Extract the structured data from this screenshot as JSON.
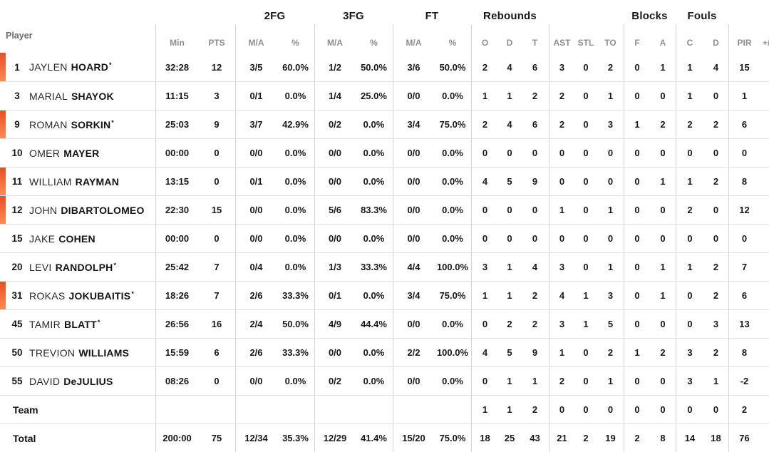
{
  "meta": {
    "starter_mark": "*"
  },
  "colors": {
    "on_court_accent_top": "#ef4c25",
    "on_court_accent_bottom": "#f68d57"
  },
  "header": {
    "player_label": "Player",
    "groups": {
      "fg2": "2FG",
      "fg3": "3FG",
      "ft": "FT",
      "rebounds": "Rebounds",
      "blocks": "Blocks",
      "fouls": "Fouls"
    },
    "cols": {
      "min": "Min",
      "pts": "PTS",
      "ma": "M/A",
      "pct": "%",
      "o": "O",
      "d": "D",
      "t": "T",
      "ast": "AST",
      "stl": "STL",
      "to": "TO",
      "f": "F",
      "a": "A",
      "c": "C",
      "pir": "PIR",
      "plusminus": "+/-"
    }
  },
  "table": {
    "rows": [
      {
        "type": "player",
        "number": "1",
        "first": "JAYLEN",
        "last": "HOARD",
        "starter": true,
        "on_court": true,
        "min": "32:28",
        "pts": "12",
        "fg2_ma": "3/5",
        "fg2_pct": "60.0%",
        "fg3_ma": "1/2",
        "fg3_pct": "50.0%",
        "ft_ma": "3/6",
        "ft_pct": "50.0%",
        "reb_o": "2",
        "reb_d": "4",
        "reb_t": "6",
        "ast": "3",
        "stl": "0",
        "to": "2",
        "blk_f": "0",
        "blk_a": "1",
        "foul_c": "1",
        "foul_d": "4",
        "pir": "15",
        "plusminus": ""
      },
      {
        "type": "player",
        "number": "3",
        "first": "MARIAL",
        "last": "SHAYOK",
        "starter": false,
        "on_court": false,
        "min": "11:15",
        "pts": "3",
        "fg2_ma": "0/1",
        "fg2_pct": "0.0%",
        "fg3_ma": "1/4",
        "fg3_pct": "25.0%",
        "ft_ma": "0/0",
        "ft_pct": "0.0%",
        "reb_o": "1",
        "reb_d": "1",
        "reb_t": "2",
        "ast": "2",
        "stl": "0",
        "to": "1",
        "blk_f": "0",
        "blk_a": "0",
        "foul_c": "1",
        "foul_d": "0",
        "pir": "1",
        "plusminus": ""
      },
      {
        "type": "player",
        "number": "9",
        "first": "ROMAN",
        "last": "SORKIN",
        "starter": true,
        "on_court": true,
        "min": "25:03",
        "pts": "9",
        "fg2_ma": "3/7",
        "fg2_pct": "42.9%",
        "fg3_ma": "0/2",
        "fg3_pct": "0.0%",
        "ft_ma": "3/4",
        "ft_pct": "75.0%",
        "reb_o": "2",
        "reb_d": "4",
        "reb_t": "6",
        "ast": "2",
        "stl": "0",
        "to": "3",
        "blk_f": "1",
        "blk_a": "2",
        "foul_c": "2",
        "foul_d": "2",
        "pir": "6",
        "plusminus": ""
      },
      {
        "type": "player",
        "number": "10",
        "first": "OMER",
        "last": "MAYER",
        "starter": false,
        "on_court": false,
        "min": "00:00",
        "pts": "0",
        "fg2_ma": "0/0",
        "fg2_pct": "0.0%",
        "fg3_ma": "0/0",
        "fg3_pct": "0.0%",
        "ft_ma": "0/0",
        "ft_pct": "0.0%",
        "reb_o": "0",
        "reb_d": "0",
        "reb_t": "0",
        "ast": "0",
        "stl": "0",
        "to": "0",
        "blk_f": "0",
        "blk_a": "0",
        "foul_c": "0",
        "foul_d": "0",
        "pir": "0",
        "plusminus": ""
      },
      {
        "type": "player",
        "number": "11",
        "first": "WILLIAM",
        "last": "RAYMAN",
        "starter": false,
        "on_court": true,
        "min": "13:15",
        "pts": "0",
        "fg2_ma": "0/1",
        "fg2_pct": "0.0%",
        "fg3_ma": "0/0",
        "fg3_pct": "0.0%",
        "ft_ma": "0/0",
        "ft_pct": "0.0%",
        "reb_o": "4",
        "reb_d": "5",
        "reb_t": "9",
        "ast": "0",
        "stl": "0",
        "to": "0",
        "blk_f": "0",
        "blk_a": "1",
        "foul_c": "1",
        "foul_d": "2",
        "pir": "8",
        "plusminus": ""
      },
      {
        "type": "player",
        "number": "12",
        "first": "JOHN",
        "last": "DIBARTOLOMEO",
        "starter": false,
        "on_court": true,
        "min": "22:30",
        "pts": "15",
        "fg2_ma": "0/0",
        "fg2_pct": "0.0%",
        "fg3_ma": "5/6",
        "fg3_pct": "83.3%",
        "ft_ma": "0/0",
        "ft_pct": "0.0%",
        "reb_o": "0",
        "reb_d": "0",
        "reb_t": "0",
        "ast": "1",
        "stl": "0",
        "to": "1",
        "blk_f": "0",
        "blk_a": "0",
        "foul_c": "2",
        "foul_d": "0",
        "pir": "12",
        "plusminus": ""
      },
      {
        "type": "player",
        "number": "15",
        "first": "JAKE",
        "last": "COHEN",
        "starter": false,
        "on_court": false,
        "min": "00:00",
        "pts": "0",
        "fg2_ma": "0/0",
        "fg2_pct": "0.0%",
        "fg3_ma": "0/0",
        "fg3_pct": "0.0%",
        "ft_ma": "0/0",
        "ft_pct": "0.0%",
        "reb_o": "0",
        "reb_d": "0",
        "reb_t": "0",
        "ast": "0",
        "stl": "0",
        "to": "0",
        "blk_f": "0",
        "blk_a": "0",
        "foul_c": "0",
        "foul_d": "0",
        "pir": "0",
        "plusminus": ""
      },
      {
        "type": "player",
        "number": "20",
        "first": "LEVI",
        "last": "RANDOLPH",
        "starter": true,
        "on_court": false,
        "min": "25:42",
        "pts": "7",
        "fg2_ma": "0/4",
        "fg2_pct": "0.0%",
        "fg3_ma": "1/3",
        "fg3_pct": "33.3%",
        "ft_ma": "4/4",
        "ft_pct": "100.0%",
        "reb_o": "3",
        "reb_d": "1",
        "reb_t": "4",
        "ast": "3",
        "stl": "0",
        "to": "1",
        "blk_f": "0",
        "blk_a": "1",
        "foul_c": "1",
        "foul_d": "2",
        "pir": "7",
        "plusminus": ""
      },
      {
        "type": "player",
        "number": "31",
        "first": "ROKAS",
        "last": "JOKUBAITIS",
        "starter": true,
        "on_court": true,
        "min": "18:26",
        "pts": "7",
        "fg2_ma": "2/6",
        "fg2_pct": "33.3%",
        "fg3_ma": "0/1",
        "fg3_pct": "0.0%",
        "ft_ma": "3/4",
        "ft_pct": "75.0%",
        "reb_o": "1",
        "reb_d": "1",
        "reb_t": "2",
        "ast": "4",
        "stl": "1",
        "to": "3",
        "blk_f": "0",
        "blk_a": "1",
        "foul_c": "0",
        "foul_d": "2",
        "pir": "6",
        "plusminus": ""
      },
      {
        "type": "player",
        "number": "45",
        "first": "TAMIR",
        "last": "BLATT",
        "starter": true,
        "on_court": false,
        "min": "26:56",
        "pts": "16",
        "fg2_ma": "2/4",
        "fg2_pct": "50.0%",
        "fg3_ma": "4/9",
        "fg3_pct": "44.4%",
        "ft_ma": "0/0",
        "ft_pct": "0.0%",
        "reb_o": "0",
        "reb_d": "2",
        "reb_t": "2",
        "ast": "3",
        "stl": "1",
        "to": "5",
        "blk_f": "0",
        "blk_a": "0",
        "foul_c": "0",
        "foul_d": "3",
        "pir": "13",
        "plusminus": ""
      },
      {
        "type": "player",
        "number": "50",
        "first": "TREVION",
        "last": "WILLIAMS",
        "starter": false,
        "on_court": false,
        "min": "15:59",
        "pts": "6",
        "fg2_ma": "2/6",
        "fg2_pct": "33.3%",
        "fg3_ma": "0/0",
        "fg3_pct": "0.0%",
        "ft_ma": "2/2",
        "ft_pct": "100.0%",
        "reb_o": "4",
        "reb_d": "5",
        "reb_t": "9",
        "ast": "1",
        "stl": "0",
        "to": "2",
        "blk_f": "1",
        "blk_a": "2",
        "foul_c": "3",
        "foul_d": "2",
        "pir": "8",
        "plusminus": ""
      },
      {
        "type": "player",
        "number": "55",
        "first": "DAVID",
        "last": "DeJULIUS",
        "starter": false,
        "on_court": false,
        "min": "08:26",
        "pts": "0",
        "fg2_ma": "0/0",
        "fg2_pct": "0.0%",
        "fg3_ma": "0/2",
        "fg3_pct": "0.0%",
        "ft_ma": "0/0",
        "ft_pct": "0.0%",
        "reb_o": "0",
        "reb_d": "1",
        "reb_t": "1",
        "ast": "2",
        "stl": "0",
        "to": "1",
        "blk_f": "0",
        "blk_a": "0",
        "foul_c": "3",
        "foul_d": "1",
        "pir": "-2",
        "plusminus": ""
      },
      {
        "type": "team",
        "label": "Team",
        "min": "",
        "pts": "",
        "fg2_ma": "",
        "fg2_pct": "",
        "fg3_ma": "",
        "fg3_pct": "",
        "ft_ma": "",
        "ft_pct": "",
        "reb_o": "1",
        "reb_d": "1",
        "reb_t": "2",
        "ast": "0",
        "stl": "0",
        "to": "0",
        "blk_f": "0",
        "blk_a": "0",
        "foul_c": "0",
        "foul_d": "0",
        "pir": "2",
        "plusminus": ""
      },
      {
        "type": "total",
        "label": "Total",
        "min": "200:00",
        "pts": "75",
        "fg2_ma": "12/34",
        "fg2_pct": "35.3%",
        "fg3_ma": "12/29",
        "fg3_pct": "41.4%",
        "ft_ma": "15/20",
        "ft_pct": "75.0%",
        "reb_o": "18",
        "reb_d": "25",
        "reb_t": "43",
        "ast": "21",
        "stl": "2",
        "to": "19",
        "blk_f": "2",
        "blk_a": "8",
        "foul_c": "14",
        "foul_d": "18",
        "pir": "76",
        "plusminus": ""
      }
    ]
  }
}
